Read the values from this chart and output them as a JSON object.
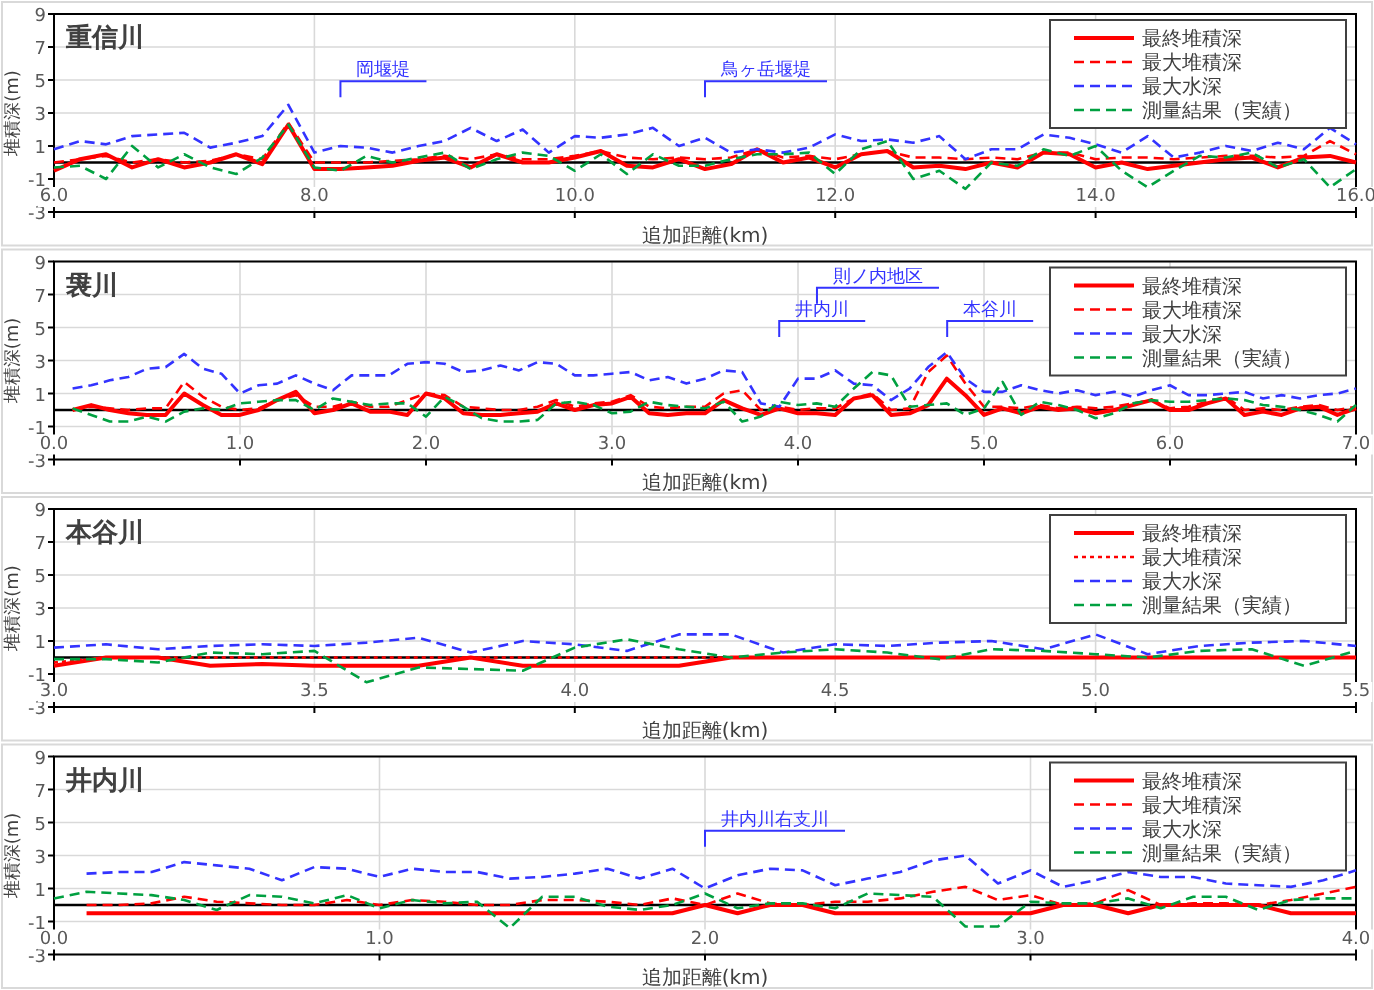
{
  "chart_data": [
    {
      "type": "line",
      "title": "重信川",
      "xlabel": "追加距離(km)",
      "ylabel": "堆積深(m)",
      "xlim": [
        6,
        16
      ],
      "xticks": [
        {
          "value": 6,
          "label": "6.0"
        },
        {
          "value": 8,
          "label": "8.0"
        },
        {
          "value": 10,
          "label": "10.0"
        },
        {
          "value": 12,
          "label": "12.0"
        },
        {
          "value": 14,
          "label": "14.0"
        },
        {
          "value": 16,
          "label": "16.0"
        }
      ],
      "ylim": [
        -3,
        9
      ],
      "yticks": [
        -3,
        -1,
        1,
        3,
        5,
        7,
        9
      ],
      "grid": true,
      "legend": "top right",
      "ref_lines": [
        {
          "axis": "y",
          "value": 0,
          "color": "#000000"
        }
      ],
      "annotations": [
        "岡堰堤",
        "鳥ヶ岳堰堤"
      ],
      "x": [
        6.0,
        6.2,
        6.4,
        6.6,
        6.8,
        7.0,
        7.2,
        7.4,
        7.6,
        7.8,
        8.0,
        8.2,
        8.4,
        8.6,
        8.8,
        9.0,
        9.2,
        9.4,
        9.6,
        9.8,
        10.0,
        10.2,
        10.4,
        10.6,
        10.8,
        11.0,
        11.2,
        11.4,
        11.6,
        11.8,
        12.0,
        12.2,
        12.4,
        12.6,
        12.8,
        13.0,
        13.2,
        13.4,
        13.6,
        13.8,
        14.0,
        14.2,
        14.4,
        14.6,
        14.8,
        15.0,
        15.2,
        15.4,
        15.6,
        15.8,
        16.0
      ],
      "series": [
        {
          "name": "最終堆積深",
          "color": "#ff0000",
          "line_style": "solid",
          "values": [
            -0.5,
            0.2,
            0.5,
            -0.3,
            0.2,
            -0.3,
            0.0,
            0.5,
            -0.1,
            2.3,
            -0.4,
            -0.4,
            -0.3,
            -0.2,
            0.1,
            0.3,
            -0.3,
            0.5,
            0.0,
            0.0,
            0.3,
            0.7,
            -0.2,
            -0.3,
            0.2,
            -0.4,
            -0.1,
            0.8,
            0.0,
            0.3,
            -0.3,
            0.5,
            0.7,
            -0.3,
            -0.2,
            -0.4,
            0.0,
            -0.3,
            0.6,
            0.5,
            -0.3,
            0.0,
            -0.4,
            -0.2,
            0.0,
            0.2,
            0.3,
            -0.3,
            0.3,
            0.4,
            0.0
          ]
        },
        {
          "name": "最大堆積深",
          "color": "#ff0000",
          "line_style": "dashed",
          "values": [
            0.0,
            0.2,
            0.4,
            0.0,
            0.2,
            0.0,
            0.1,
            0.5,
            0.2,
            2.4,
            0.0,
            0.0,
            0.0,
            0.1,
            0.2,
            0.4,
            0.2,
            0.5,
            0.2,
            0.2,
            0.4,
            0.7,
            0.3,
            0.2,
            0.3,
            0.2,
            0.3,
            0.8,
            0.3,
            0.4,
            0.2,
            0.5,
            0.7,
            0.3,
            0.3,
            0.2,
            0.3,
            0.2,
            0.6,
            0.6,
            0.2,
            0.3,
            0.3,
            0.2,
            0.3,
            0.4,
            0.4,
            0.3,
            0.4,
            1.3,
            0.5
          ]
        },
        {
          "name": "最大水深",
          "color": "#3333ff",
          "line_style": "dashed",
          "values": [
            0.8,
            1.3,
            1.1,
            1.6,
            1.7,
            1.8,
            0.9,
            1.2,
            1.6,
            3.5,
            0.6,
            1.0,
            0.9,
            0.6,
            1.0,
            1.3,
            2.1,
            1.3,
            2.0,
            0.6,
            1.6,
            1.5,
            1.7,
            2.1,
            1.0,
            1.5,
            0.6,
            0.8,
            0.6,
            0.9,
            1.7,
            1.3,
            1.4,
            1.2,
            1.6,
            0.2,
            0.8,
            0.8,
            1.7,
            1.5,
            1.1,
            0.6,
            1.6,
            0.3,
            0.6,
            1.0,
            0.7,
            1.2,
            0.8,
            2.1,
            1.1
          ]
        },
        {
          "name": "測量結果（実績）",
          "color": "#00a040",
          "line_style": "dashed",
          "values": [
            -0.3,
            -0.2,
            -1.0,
            1.0,
            -0.3,
            0.5,
            -0.3,
            -0.7,
            0.3,
            2.3,
            -0.3,
            -0.5,
            0.4,
            0.0,
            0.3,
            0.6,
            -0.4,
            0.2,
            0.6,
            0.4,
            -0.5,
            0.5,
            -0.7,
            0.5,
            -0.2,
            -0.2,
            0.2,
            0.5,
            0.5,
            0.6,
            -0.7,
            0.8,
            1.3,
            -1.0,
            -0.5,
            -1.6,
            0.0,
            -0.2,
            0.8,
            0.4,
            1.0,
            -0.5,
            -1.5,
            -0.5,
            0.4,
            0.3,
            0.6,
            -0.3,
            0.2,
            -1.5,
            -0.4
          ]
        }
      ]
    },
    {
      "type": "line",
      "title": "袰川",
      "xlabel": "追加距離(km)",
      "ylabel": "堆積深(m)",
      "xlim": [
        0,
        7
      ],
      "xticks": [
        {
          "value": 0,
          "label": "0.0"
        },
        {
          "value": 1,
          "label": "1.0"
        },
        {
          "value": 2,
          "label": "2.0"
        },
        {
          "value": 3,
          "label": "3.0"
        },
        {
          "value": 4,
          "label": "4.0"
        },
        {
          "value": 5,
          "label": "5.0"
        },
        {
          "value": 6,
          "label": "6.0"
        },
        {
          "value": 7,
          "label": "7.0"
        }
      ],
      "ylim": [
        -3,
        9
      ],
      "yticks": [
        -3,
        -1,
        1,
        3,
        5,
        7,
        9
      ],
      "grid": true,
      "legend": "top right",
      "ref_lines": [
        {
          "axis": "y",
          "value": 0,
          "color": "#000000"
        }
      ],
      "annotations": [
        "井内川",
        "則ノ内地区",
        "本谷川"
      ],
      "x": [
        0.1,
        0.2,
        0.3,
        0.4,
        0.5,
        0.6,
        0.7,
        0.8,
        0.9,
        1.0,
        1.1,
        1.2,
        1.3,
        1.4,
        1.5,
        1.6,
        1.7,
        1.8,
        1.9,
        2.0,
        2.1,
        2.2,
        2.3,
        2.4,
        2.5,
        2.6,
        2.7,
        2.8,
        2.9,
        3.0,
        3.1,
        3.2,
        3.3,
        3.4,
        3.5,
        3.6,
        3.7,
        3.8,
        3.9,
        4.0,
        4.1,
        4.2,
        4.3,
        4.4,
        4.5,
        4.6,
        4.7,
        4.8,
        4.9,
        5.0,
        5.1,
        5.2,
        5.3,
        5.4,
        5.5,
        5.6,
        5.7,
        5.8,
        5.9,
        6.0,
        6.1,
        6.2,
        6.3,
        6.4,
        6.5,
        6.6,
        6.7,
        6.8,
        6.9,
        7.0
      ],
      "series": [
        {
          "name": "最終堆積深",
          "color": "#ff0000",
          "line_style": "solid",
          "values": [
            0.0,
            0.3,
            0.0,
            -0.2,
            -0.3,
            -0.3,
            1.0,
            0.3,
            -0.3,
            -0.3,
            0.0,
            0.6,
            1.1,
            -0.2,
            0.0,
            0.4,
            -0.1,
            -0.1,
            -0.3,
            1.0,
            0.7,
            -0.2,
            -0.3,
            -0.3,
            -0.2,
            -0.1,
            0.4,
            0.0,
            0.3,
            0.4,
            0.8,
            -0.2,
            -0.3,
            -0.2,
            -0.2,
            0.6,
            0.1,
            -0.3,
            0.1,
            -0.2,
            -0.2,
            -0.3,
            0.7,
            0.9,
            -0.3,
            -0.2,
            0.3,
            1.9,
            0.9,
            -0.3,
            0.1,
            -0.2,
            0.2,
            0.0,
            0.1,
            -0.2,
            0.0,
            0.3,
            0.6,
            0.0,
            0.0,
            0.4,
            0.7,
            -0.3,
            -0.1,
            -0.3,
            0.1,
            0.2,
            -0.3,
            0.1
          ]
        },
        {
          "name": "最大堆積深",
          "color": "#ff0000",
          "line_style": "dashed",
          "values": [
            0.0,
            0.2,
            0.1,
            0.0,
            0.1,
            0.1,
            1.7,
            0.8,
            0.2,
            0.0,
            0.1,
            0.6,
            0.9,
            0.2,
            0.2,
            0.5,
            0.2,
            0.2,
            0.6,
            1.0,
            0.9,
            0.2,
            0.1,
            0.0,
            0.0,
            0.2,
            0.6,
            0.2,
            0.4,
            0.5,
            0.9,
            0.2,
            0.1,
            0.2,
            0.2,
            1.0,
            1.2,
            0.0,
            0.2,
            0.0,
            0.1,
            0.1,
            0.7,
            1.0,
            0.0,
            0.1,
            2.3,
            3.3,
            1.6,
            0.2,
            0.2,
            0.1,
            0.3,
            0.1,
            0.2,
            0.1,
            0.2,
            0.4,
            0.6,
            0.1,
            0.2,
            0.5,
            0.8,
            0.0,
            0.1,
            0.0,
            0.2,
            0.3,
            0.0,
            0.2
          ]
        },
        {
          "name": "最大水深",
          "color": "#3333ff",
          "line_style": "dashed",
          "values": [
            1.3,
            1.5,
            1.8,
            2.0,
            2.5,
            2.6,
            3.4,
            2.5,
            2.2,
            1.0,
            1.5,
            1.6,
            2.1,
            1.6,
            1.2,
            2.1,
            2.1,
            2.1,
            2.8,
            2.9,
            2.8,
            2.3,
            2.4,
            2.7,
            2.4,
            2.9,
            2.8,
            2.1,
            2.1,
            2.2,
            2.3,
            1.8,
            2.0,
            1.6,
            1.9,
            2.4,
            2.3,
            0.4,
            0.2,
            1.9,
            1.9,
            2.4,
            1.6,
            1.5,
            0.6,
            1.3,
            2.6,
            3.5,
            1.9,
            1.1,
            1.1,
            1.5,
            1.2,
            1.0,
            1.2,
            0.9,
            1.1,
            0.8,
            1.2,
            1.5,
            0.9,
            0.9,
            1.0,
            1.1,
            0.7,
            0.9,
            0.7,
            0.9,
            1.0,
            1.3
          ]
        },
        {
          "name": "測量結果（実績）",
          "color": "#00a040",
          "line_style": "dashed",
          "values": [
            0.1,
            -0.3,
            -0.7,
            -0.7,
            -0.4,
            -0.7,
            -0.1,
            0.1,
            0.0,
            0.4,
            0.5,
            0.6,
            0.6,
            0.0,
            0.7,
            0.5,
            0.3,
            0.4,
            0.4,
            -0.4,
            0.8,
            0.2,
            -0.5,
            -0.7,
            -0.7,
            -0.6,
            0.4,
            0.5,
            0.3,
            -0.2,
            -0.1,
            0.5,
            0.3,
            0.2,
            0.1,
            0.5,
            -0.7,
            -0.4,
            0.5,
            0.3,
            0.4,
            0.2,
            1.3,
            2.3,
            2.1,
            0.2,
            0.3,
            0.4,
            -0.3,
            0.1,
            1.7,
            -0.3,
            0.5,
            0.3,
            0.0,
            -0.5,
            -0.2,
            0.4,
            0.6,
            0.5,
            0.5,
            0.6,
            0.7,
            0.6,
            0.3,
            0.2,
            0.0,
            -0.3,
            -0.7,
            0.3
          ]
        }
      ]
    },
    {
      "type": "line",
      "title": "本谷川",
      "xlabel": "追加距離(km)",
      "ylabel": "堆積深(m)",
      "xlim": [
        3,
        5.5
      ],
      "xticks": [
        {
          "value": 3,
          "label": "3.0"
        },
        {
          "value": 3.5,
          "label": "3.5"
        },
        {
          "value": 4,
          "label": "4.0"
        },
        {
          "value": 4.5,
          "label": "4.5"
        },
        {
          "value": 5,
          "label": "5.0"
        },
        {
          "value": 5.5,
          "label": "5.5"
        }
      ],
      "ylim": [
        -3,
        9
      ],
      "yticks": [
        -3,
        -1,
        1,
        3,
        5,
        7,
        9
      ],
      "grid": true,
      "legend": "top right",
      "ref_lines": [
        {
          "axis": "y",
          "value": 0,
          "color": "#000000"
        }
      ],
      "x": [
        3.0,
        3.1,
        3.2,
        3.3,
        3.4,
        3.5,
        3.6,
        3.7,
        3.8,
        3.9,
        4.0,
        4.1,
        4.2,
        4.3,
        4.4,
        4.5,
        4.6,
        4.7,
        4.8,
        4.9,
        5.0,
        5.1,
        5.2,
        5.3,
        5.4,
        5.5
      ],
      "series": [
        {
          "name": "最終堆積深",
          "color": "#ff0000",
          "line_style": "solid",
          "values": [
            -0.5,
            0.0,
            0.0,
            -0.5,
            -0.4,
            -0.5,
            -0.5,
            -0.5,
            0.0,
            -0.5,
            -0.5,
            -0.5,
            -0.5,
            0.0,
            0.0,
            0.0,
            0.0,
            0.0,
            0.0,
            0.0,
            0.0,
            0.0,
            0.0,
            0.0,
            0.0,
            0.0
          ]
        },
        {
          "name": "最大堆積深",
          "color": "#ff0000",
          "line_style": "dotted",
          "values": [
            -0.3,
            0.0,
            0.0,
            0.0,
            0.0,
            0.0,
            0.0,
            0.0,
            0.0,
            0.0,
            0.0,
            0.0,
            0.0,
            0.0,
            0.0,
            0.0,
            0.0,
            0.0,
            0.0,
            0.0,
            0.0,
            0.0,
            0.0,
            0.0,
            0.0,
            0.0
          ]
        },
        {
          "name": "最大水深",
          "color": "#3333ff",
          "line_style": "dashed",
          "values": [
            0.6,
            0.8,
            0.5,
            0.7,
            0.8,
            0.7,
            0.9,
            1.2,
            0.3,
            1.0,
            0.8,
            0.4,
            1.4,
            1.4,
            0.3,
            0.8,
            0.7,
            0.9,
            1.0,
            0.5,
            1.4,
            0.2,
            0.7,
            0.9,
            1.0,
            0.7
          ]
        },
        {
          "name": "測量結果（実績）",
          "color": "#00a040",
          "line_style": "dashed",
          "values": [
            -0.1,
            -0.1,
            -0.3,
            0.3,
            0.2,
            0.4,
            -1.5,
            -0.6,
            -0.7,
            -0.8,
            0.6,
            1.1,
            0.5,
            0.0,
            0.3,
            0.5,
            0.3,
            -0.1,
            0.5,
            0.4,
            0.2,
            0.0,
            0.4,
            0.5,
            -0.5,
            0.4
          ]
        }
      ]
    },
    {
      "type": "line",
      "title": "井内川",
      "xlabel": "追加距離(km)",
      "ylabel": "堆積深(m)",
      "xlim": [
        0,
        4
      ],
      "xticks": [
        {
          "value": 0,
          "label": "0.0"
        },
        {
          "value": 1,
          "label": "1.0"
        },
        {
          "value": 2,
          "label": "2.0"
        },
        {
          "value": 3,
          "label": "3.0"
        },
        {
          "value": 4,
          "label": "4.0"
        }
      ],
      "ylim": [
        -3,
        9
      ],
      "yticks": [
        -3,
        -1,
        1,
        3,
        5,
        7,
        9
      ],
      "grid": true,
      "legend": "top right",
      "ref_lines": [
        {
          "axis": "y",
          "value": 0,
          "color": "#000000"
        }
      ],
      "annotations": [
        "井内川右支川"
      ],
      "x": [
        0.0,
        0.1,
        0.2,
        0.3,
        0.4,
        0.5,
        0.6,
        0.7,
        0.8,
        0.9,
        1.0,
        1.1,
        1.2,
        1.3,
        1.4,
        1.5,
        1.6,
        1.7,
        1.8,
        1.9,
        2.0,
        2.1,
        2.2,
        2.3,
        2.4,
        2.5,
        2.6,
        2.7,
        2.8,
        2.9,
        3.0,
        3.1,
        3.2,
        3.3,
        3.4,
        3.5,
        3.6,
        3.7,
        3.8,
        3.9,
        4.0
      ],
      "series": [
        {
          "name": "最終堆積深",
          "color": "#ff0000",
          "line_style": "solid",
          "values": [
            null,
            -0.5,
            -0.5,
            -0.5,
            -0.5,
            -0.5,
            -0.5,
            -0.5,
            -0.5,
            -0.5,
            -0.5,
            -0.5,
            -0.5,
            -0.5,
            -0.5,
            -0.5,
            -0.5,
            -0.5,
            -0.5,
            -0.5,
            0.0,
            -0.5,
            0.0,
            0.0,
            -0.5,
            -0.5,
            -0.5,
            -0.5,
            -0.5,
            -0.5,
            -0.5,
            0.0,
            0.0,
            -0.5,
            0.0,
            0.0,
            0.0,
            0.0,
            -0.5,
            -0.5,
            -0.5
          ]
        },
        {
          "name": "最大堆積深",
          "color": "#ff0000",
          "line_style": "dashed",
          "values": [
            null,
            0.0,
            0.0,
            0.1,
            0.5,
            0.2,
            0.1,
            0.0,
            0.0,
            0.3,
            0.0,
            0.3,
            0.2,
            0.0,
            0.0,
            0.3,
            0.3,
            0.2,
            0.0,
            0.4,
            0.0,
            0.7,
            0.1,
            0.0,
            0.2,
            0.2,
            0.4,
            0.8,
            1.1,
            0.3,
            0.6,
            0.0,
            0.1,
            0.9,
            0.0,
            0.1,
            0.1,
            0.0,
            0.3,
            0.7,
            1.1
          ]
        },
        {
          "name": "最大水深",
          "color": "#3333ff",
          "line_style": "dashed",
          "values": [
            null,
            1.9,
            2.0,
            2.0,
            2.6,
            2.4,
            2.2,
            1.5,
            2.3,
            2.2,
            1.7,
            2.2,
            2.0,
            2.0,
            1.6,
            1.7,
            1.9,
            2.2,
            1.6,
            2.2,
            1.0,
            1.8,
            2.2,
            2.1,
            1.2,
            1.6,
            2.0,
            2.7,
            3.0,
            1.3,
            2.1,
            1.1,
            1.5,
            2.0,
            1.7,
            1.7,
            1.3,
            1.2,
            1.1,
            1.5,
            2.1
          ]
        },
        {
          "name": "測量結果（実績）",
          "color": "#00a040",
          "line_style": "dashed",
          "values": [
            0.4,
            0.8,
            0.7,
            0.6,
            0.3,
            -0.3,
            0.6,
            0.5,
            0.1,
            0.6,
            -0.2,
            0.3,
            0.1,
            0.2,
            -1.4,
            0.5,
            0.5,
            -0.1,
            -0.3,
            0.0,
            0.7,
            -0.2,
            0.1,
            0.1,
            -0.2,
            0.7,
            0.6,
            0.5,
            -1.3,
            -1.3,
            0.2,
            0.1,
            0.1,
            0.4,
            -0.2,
            0.5,
            0.5,
            -0.3,
            0.3,
            0.4,
            0.4
          ]
        }
      ]
    }
  ]
}
